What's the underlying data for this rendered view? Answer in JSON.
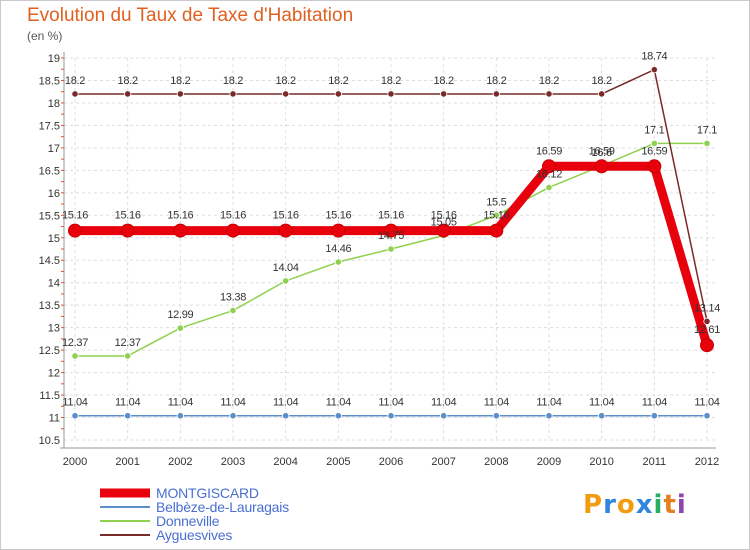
{
  "chart_data": {
    "type": "line",
    "title": "Evolution du Taux de Taxe d'Habitation",
    "unit_label": "(en %)",
    "xlabel": "",
    "ylabel": "",
    "ylim": [
      10.5,
      19
    ],
    "yticks": [
      "10.5",
      "11",
      "11.5",
      "12",
      "12.5",
      "13",
      "13.5",
      "14",
      "14.5",
      "15",
      "15.5",
      "16",
      "16.5",
      "17",
      "17.5",
      "18",
      "18.5",
      "19"
    ],
    "categories": [
      "2000",
      "2001",
      "2002",
      "2003",
      "2004",
      "2005",
      "2006",
      "2007",
      "2008",
      "2009",
      "2010",
      "2011",
      "2012"
    ],
    "grid": true,
    "legend_position": "bottom-left",
    "series": [
      {
        "name": "MONTGISCARD",
        "color": "#e8000d",
        "values": [
          15.16,
          15.16,
          15.16,
          15.16,
          15.16,
          15.16,
          15.16,
          15.16,
          15.16,
          16.59,
          16.59,
          16.59,
          12.61
        ],
        "labels": [
          "15.16",
          "15.16",
          "15.16",
          "15.16",
          "15.16",
          "15.16",
          "15.16",
          "15.16",
          "15.16",
          "16.59",
          "16.59",
          "16.59",
          "12.61"
        ]
      },
      {
        "name": "Belbèze-de-Lauragais",
        "color": "#5b8fc7",
        "values": [
          11.04,
          11.04,
          11.04,
          11.04,
          11.04,
          11.04,
          11.04,
          11.04,
          11.04,
          11.04,
          11.04,
          11.04,
          11.04
        ],
        "labels": [
          "11.04",
          "11.04",
          "11.04",
          "11.04",
          "11.04",
          "11.04",
          "11.04",
          "11.04",
          "11.04",
          "11.04",
          "11.04",
          "11.04",
          "11.04"
        ]
      },
      {
        "name": "Donneville",
        "color": "#8fd14f",
        "values": [
          12.37,
          12.37,
          12.99,
          13.38,
          14.04,
          14.46,
          14.75,
          15.05,
          15.5,
          16.12,
          16.6,
          17.1,
          17.1
        ],
        "labels": [
          "12.37",
          "12.37",
          "12.99",
          "13.38",
          "14.04",
          "14.46",
          "14.75",
          "15.05",
          "15.5",
          "16.12",
          "16.6",
          "17.1",
          "17.1"
        ]
      },
      {
        "name": "Ayguesvives",
        "color": "#7b2a2a",
        "values": [
          18.2,
          18.2,
          18.2,
          18.2,
          18.2,
          18.2,
          18.2,
          18.2,
          18.2,
          18.2,
          18.2,
          18.74,
          13.14
        ],
        "labels": [
          "18.2",
          "18.2",
          "18.2",
          "18.2",
          "18.2",
          "18.2",
          "18.2",
          "18.2",
          "18.2",
          "18.2",
          "18.2",
          "18.74",
          "13.14"
        ]
      }
    ]
  },
  "branding": {
    "logo_text": "Proxiti",
    "logo_letters": [
      "P",
      "r",
      "o",
      "x",
      "i",
      "t",
      "i"
    ],
    "logo_colors": [
      "#f39c12",
      "#2e86de",
      "#f39c12",
      "#2e86de",
      "#27ae60",
      "#e67e22",
      "#8e44ad"
    ]
  }
}
